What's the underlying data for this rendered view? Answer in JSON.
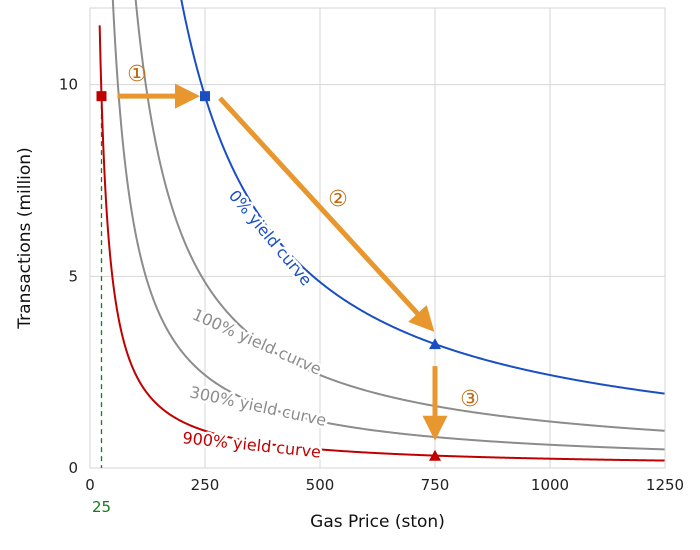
{
  "chart_data": {
    "type": "line",
    "title": "",
    "xlabel": "Gas Price (ston)",
    "ylabel": "Transactions (million)",
    "xlim": [
      0,
      1250
    ],
    "ylim": [
      0,
      12
    ],
    "xticks": [
      0,
      250,
      500,
      750,
      1000,
      1250
    ],
    "xtick_labels": [
      "0",
      "250",
      "500",
      "750",
      "1000",
      "1250"
    ],
    "yticks": [
      0,
      5,
      10
    ],
    "ytick_labels": [
      "0",
      "5",
      "10"
    ],
    "grid": true,
    "series": [
      {
        "name": "0% yield curve",
        "label": "0% yield curve",
        "color": "#1a4fc4",
        "k": 2425
      },
      {
        "name": "100% yield curve",
        "label": "100% yield curve",
        "color": "#8c8c8c",
        "k": 1212.5
      },
      {
        "name": "300% yield curve",
        "label": "300% yield curve",
        "color": "#8c8c8c",
        "k": 606.25
      },
      {
        "name": "900% yield curve",
        "label": "900% yield curve",
        "color": "#c00000",
        "k": 242.5
      }
    ],
    "points": [
      {
        "name": "start",
        "x": 25,
        "y": 9.7,
        "shape": "square",
        "color": "#c00000"
      },
      {
        "name": "after-step-1",
        "x": 250,
        "y": 9.7,
        "shape": "square",
        "color": "#1a4fc4"
      },
      {
        "name": "after-step-2",
        "x": 750,
        "y": 3.23,
        "shape": "triangle",
        "color": "#1a4fc4"
      },
      {
        "name": "after-step-3",
        "x": 750,
        "y": 0.32,
        "shape": "triangle",
        "color": "#c00000"
      }
    ],
    "annotations": {
      "steps": [
        "①",
        "②",
        "③"
      ],
      "arrow_color": "#e8962e",
      "marker_line": {
        "x": 25,
        "label": "25",
        "color": "#1a7a1a"
      }
    }
  }
}
